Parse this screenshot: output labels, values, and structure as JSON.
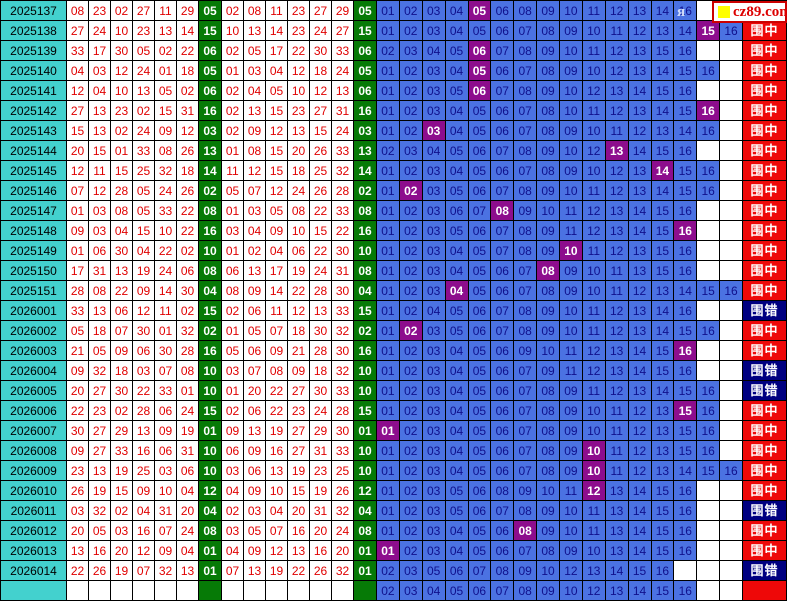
{
  "logo": {
    "site": "cz89.com",
    "watermark_fragment": "я",
    "square_color": "#FFFF00"
  },
  "colors": {
    "period_bg": "#43D1CE",
    "drawn_text": "#E00000",
    "blue_ball_bg": "#067A06",
    "pick_bg": "#4B72E2",
    "pick_text": "#10108C",
    "hit_bg": "#8D0D8D",
    "status_hit_bg": "#EE0808",
    "status_miss_bg": "#000080",
    "border": "#000000"
  },
  "chart_data": {
    "type": "table",
    "grid_columns": 16,
    "status_labels": {
      "hit": "围中",
      "miss": "围错",
      "pending": ""
    },
    "rows": [
      {
        "period": "2025137",
        "drawn": [
          "08",
          "23",
          "02",
          "27",
          "11",
          "29"
        ],
        "blue": "05",
        "sorted": [
          "02",
          "08",
          "11",
          "23",
          "27",
          "29"
        ],
        "picks": [
          "01",
          "02",
          "03",
          "04",
          "05",
          "06",
          "08",
          "09",
          "10",
          "11",
          "12",
          "13",
          "14",
          "16"
        ],
        "status": "hit"
      },
      {
        "period": "2025138",
        "drawn": [
          "27",
          "24",
          "10",
          "23",
          "13",
          "14"
        ],
        "blue": "15",
        "sorted": [
          "10",
          "13",
          "14",
          "23",
          "24",
          "27"
        ],
        "picks": [
          "01",
          "02",
          "03",
          "04",
          "05",
          "06",
          "07",
          "08",
          "09",
          "10",
          "11",
          "12",
          "13",
          "14",
          "15",
          "16"
        ],
        "status": "hit"
      },
      {
        "period": "2025139",
        "drawn": [
          "33",
          "17",
          "30",
          "05",
          "02",
          "22"
        ],
        "blue": "06",
        "sorted": [
          "02",
          "05",
          "17",
          "22",
          "30",
          "33"
        ],
        "picks": [
          "02",
          "03",
          "04",
          "05",
          "06",
          "07",
          "08",
          "09",
          "10",
          "11",
          "12",
          "13",
          "15",
          "16"
        ],
        "status": "hit"
      },
      {
        "period": "2025140",
        "drawn": [
          "04",
          "03",
          "12",
          "24",
          "01",
          "18"
        ],
        "blue": "05",
        "sorted": [
          "01",
          "03",
          "04",
          "12",
          "18",
          "24"
        ],
        "picks": [
          "01",
          "02",
          "03",
          "04",
          "05",
          "06",
          "07",
          "08",
          "09",
          "10",
          "12",
          "13",
          "14",
          "15",
          "16"
        ],
        "status": "hit"
      },
      {
        "period": "2025141",
        "drawn": [
          "12",
          "04",
          "10",
          "13",
          "05",
          "02"
        ],
        "blue": "06",
        "sorted": [
          "02",
          "04",
          "05",
          "10",
          "12",
          "13"
        ],
        "picks": [
          "01",
          "02",
          "03",
          "05",
          "06",
          "07",
          "08",
          "09",
          "10",
          "12",
          "13",
          "14",
          "15",
          "16"
        ],
        "status": "hit"
      },
      {
        "period": "2025142",
        "drawn": [
          "27",
          "13",
          "23",
          "02",
          "15",
          "31"
        ],
        "blue": "16",
        "sorted": [
          "02",
          "13",
          "15",
          "23",
          "27",
          "31"
        ],
        "picks": [
          "01",
          "02",
          "03",
          "04",
          "05",
          "06",
          "07",
          "08",
          "10",
          "11",
          "12",
          "13",
          "14",
          "15",
          "16"
        ],
        "status": "hit"
      },
      {
        "period": "2025143",
        "drawn": [
          "15",
          "13",
          "02",
          "24",
          "09",
          "12"
        ],
        "blue": "03",
        "sorted": [
          "02",
          "09",
          "12",
          "13",
          "15",
          "24"
        ],
        "picks": [
          "01",
          "02",
          "03",
          "04",
          "05",
          "06",
          "07",
          "08",
          "09",
          "10",
          "11",
          "12",
          "13",
          "14",
          "16"
        ],
        "status": "hit"
      },
      {
        "period": "2025144",
        "drawn": [
          "20",
          "15",
          "01",
          "33",
          "08",
          "26"
        ],
        "blue": "13",
        "sorted": [
          "01",
          "08",
          "15",
          "20",
          "26",
          "33"
        ],
        "picks": [
          "02",
          "03",
          "04",
          "05",
          "06",
          "07",
          "08",
          "09",
          "10",
          "12",
          "13",
          "14",
          "15",
          "16"
        ],
        "status": "hit"
      },
      {
        "period": "2025145",
        "drawn": [
          "12",
          "11",
          "15",
          "25",
          "32",
          "18"
        ],
        "blue": "14",
        "sorted": [
          "11",
          "12",
          "15",
          "18",
          "25",
          "32"
        ],
        "picks": [
          "01",
          "02",
          "03",
          "04",
          "05",
          "06",
          "07",
          "08",
          "09",
          "10",
          "12",
          "13",
          "14",
          "15",
          "16"
        ],
        "status": "hit"
      },
      {
        "period": "2025146",
        "drawn": [
          "07",
          "12",
          "28",
          "05",
          "24",
          "26"
        ],
        "blue": "02",
        "sorted": [
          "05",
          "07",
          "12",
          "24",
          "26",
          "28"
        ],
        "picks": [
          "01",
          "02",
          "03",
          "05",
          "06",
          "07",
          "08",
          "09",
          "10",
          "11",
          "12",
          "13",
          "14",
          "15",
          "16"
        ],
        "status": "hit"
      },
      {
        "period": "2025147",
        "drawn": [
          "01",
          "03",
          "08",
          "05",
          "33",
          "22"
        ],
        "blue": "08",
        "sorted": [
          "01",
          "03",
          "05",
          "08",
          "22",
          "33"
        ],
        "picks": [
          "01",
          "02",
          "03",
          "06",
          "07",
          "08",
          "09",
          "10",
          "11",
          "12",
          "13",
          "14",
          "15",
          "16"
        ],
        "status": "hit"
      },
      {
        "period": "2025148",
        "drawn": [
          "09",
          "03",
          "04",
          "15",
          "10",
          "22"
        ],
        "blue": "16",
        "sorted": [
          "03",
          "04",
          "09",
          "10",
          "15",
          "22"
        ],
        "picks": [
          "01",
          "02",
          "03",
          "05",
          "06",
          "07",
          "08",
          "09",
          "11",
          "12",
          "13",
          "14",
          "15",
          "16"
        ],
        "status": "hit"
      },
      {
        "period": "2025149",
        "drawn": [
          "01",
          "06",
          "30",
          "04",
          "22",
          "02"
        ],
        "blue": "10",
        "sorted": [
          "01",
          "02",
          "04",
          "06",
          "22",
          "30"
        ],
        "picks": [
          "01",
          "02",
          "03",
          "04",
          "05",
          "07",
          "08",
          "09",
          "10",
          "11",
          "12",
          "13",
          "15",
          "16"
        ],
        "status": "hit"
      },
      {
        "period": "2025150",
        "drawn": [
          "17",
          "31",
          "13",
          "19",
          "24",
          "06"
        ],
        "blue": "08",
        "sorted": [
          "06",
          "13",
          "17",
          "19",
          "24",
          "31"
        ],
        "picks": [
          "01",
          "02",
          "03",
          "04",
          "05",
          "06",
          "07",
          "08",
          "09",
          "10",
          "11",
          "13",
          "15",
          "16"
        ],
        "status": "hit"
      },
      {
        "period": "2025151",
        "drawn": [
          "28",
          "08",
          "22",
          "09",
          "14",
          "30"
        ],
        "blue": "04",
        "sorted": [
          "08",
          "09",
          "14",
          "22",
          "28",
          "30"
        ],
        "picks": [
          "01",
          "02",
          "03",
          "04",
          "05",
          "06",
          "07",
          "08",
          "09",
          "10",
          "11",
          "12",
          "13",
          "14",
          "15",
          "16"
        ],
        "status": "hit"
      },
      {
        "period": "2026001",
        "drawn": [
          "33",
          "13",
          "06",
          "12",
          "11",
          "02"
        ],
        "blue": "15",
        "sorted": [
          "02",
          "06",
          "11",
          "12",
          "13",
          "33"
        ],
        "picks": [
          "01",
          "02",
          "04",
          "05",
          "06",
          "07",
          "08",
          "09",
          "10",
          "11",
          "12",
          "13",
          "14",
          "16"
        ],
        "status": "miss"
      },
      {
        "period": "2026002",
        "drawn": [
          "05",
          "18",
          "07",
          "30",
          "01",
          "32"
        ],
        "blue": "02",
        "sorted": [
          "01",
          "05",
          "07",
          "18",
          "30",
          "32"
        ],
        "picks": [
          "01",
          "02",
          "03",
          "05",
          "06",
          "07",
          "08",
          "09",
          "10",
          "11",
          "12",
          "13",
          "14",
          "15",
          "16"
        ],
        "status": "hit"
      },
      {
        "period": "2026003",
        "drawn": [
          "21",
          "05",
          "09",
          "06",
          "30",
          "28"
        ],
        "blue": "16",
        "sorted": [
          "05",
          "06",
          "09",
          "21",
          "28",
          "30"
        ],
        "picks": [
          "01",
          "02",
          "03",
          "04",
          "05",
          "06",
          "09",
          "10",
          "11",
          "12",
          "13",
          "14",
          "15",
          "16"
        ],
        "status": "hit"
      },
      {
        "period": "2026004",
        "drawn": [
          "09",
          "32",
          "18",
          "03",
          "07",
          "08"
        ],
        "blue": "10",
        "sorted": [
          "03",
          "07",
          "08",
          "09",
          "18",
          "32"
        ],
        "picks": [
          "01",
          "02",
          "03",
          "04",
          "05",
          "06",
          "07",
          "09",
          "11",
          "12",
          "13",
          "14",
          "15",
          "16"
        ],
        "status": "miss"
      },
      {
        "period": "2026005",
        "drawn": [
          "20",
          "27",
          "30",
          "22",
          "33",
          "01"
        ],
        "blue": "10",
        "sorted": [
          "01",
          "20",
          "22",
          "27",
          "30",
          "33"
        ],
        "picks": [
          "01",
          "02",
          "03",
          "04",
          "05",
          "06",
          "07",
          "08",
          "09",
          "11",
          "12",
          "13",
          "14",
          "15",
          "16"
        ],
        "status": "miss"
      },
      {
        "period": "2026006",
        "drawn": [
          "22",
          "23",
          "02",
          "28",
          "06",
          "24"
        ],
        "blue": "15",
        "sorted": [
          "02",
          "06",
          "22",
          "23",
          "24",
          "28"
        ],
        "picks": [
          "01",
          "02",
          "03",
          "04",
          "05",
          "06",
          "07",
          "08",
          "09",
          "10",
          "11",
          "12",
          "13",
          "15",
          "16"
        ],
        "status": "hit"
      },
      {
        "period": "2026007",
        "drawn": [
          "30",
          "27",
          "29",
          "13",
          "09",
          "19"
        ],
        "blue": "01",
        "sorted": [
          "09",
          "13",
          "19",
          "27",
          "29",
          "30"
        ],
        "picks": [
          "01",
          "02",
          "03",
          "04",
          "05",
          "06",
          "07",
          "08",
          "09",
          "10",
          "11",
          "12",
          "13",
          "15",
          "16"
        ],
        "status": "hit"
      },
      {
        "period": "2026008",
        "drawn": [
          "09",
          "27",
          "33",
          "16",
          "06",
          "31"
        ],
        "blue": "10",
        "sorted": [
          "06",
          "09",
          "16",
          "27",
          "31",
          "33"
        ],
        "picks": [
          "01",
          "02",
          "03",
          "04",
          "05",
          "06",
          "07",
          "08",
          "09",
          "10",
          "11",
          "12",
          "13",
          "15",
          "16"
        ],
        "status": "hit"
      },
      {
        "period": "2026009",
        "drawn": [
          "23",
          "13",
          "19",
          "25",
          "03",
          "06"
        ],
        "blue": "10",
        "sorted": [
          "03",
          "06",
          "13",
          "19",
          "23",
          "25"
        ],
        "picks": [
          "01",
          "02",
          "03",
          "04",
          "05",
          "06",
          "07",
          "08",
          "09",
          "10",
          "11",
          "12",
          "13",
          "14",
          "15",
          "16"
        ],
        "status": "hit"
      },
      {
        "period": "2026010",
        "drawn": [
          "26",
          "19",
          "15",
          "09",
          "10",
          "04"
        ],
        "blue": "12",
        "sorted": [
          "04",
          "09",
          "10",
          "15",
          "19",
          "26"
        ],
        "picks": [
          "01",
          "02",
          "03",
          "05",
          "06",
          "08",
          "09",
          "10",
          "11",
          "12",
          "13",
          "14",
          "15",
          "16"
        ],
        "status": "hit"
      },
      {
        "period": "2026011",
        "drawn": [
          "03",
          "32",
          "02",
          "04",
          "31",
          "20"
        ],
        "blue": "04",
        "sorted": [
          "02",
          "03",
          "04",
          "20",
          "31",
          "32"
        ],
        "picks": [
          "01",
          "02",
          "03",
          "05",
          "06",
          "07",
          "08",
          "09",
          "10",
          "11",
          "13",
          "14",
          "15",
          "16"
        ],
        "status": "miss"
      },
      {
        "period": "2026012",
        "drawn": [
          "20",
          "05",
          "03",
          "16",
          "07",
          "24"
        ],
        "blue": "08",
        "sorted": [
          "03",
          "05",
          "07",
          "16",
          "20",
          "24"
        ],
        "picks": [
          "01",
          "02",
          "03",
          "04",
          "05",
          "06",
          "08",
          "09",
          "10",
          "11",
          "13",
          "14",
          "15",
          "16"
        ],
        "status": "hit"
      },
      {
        "period": "2026013",
        "drawn": [
          "13",
          "16",
          "20",
          "12",
          "09",
          "04"
        ],
        "blue": "01",
        "sorted": [
          "04",
          "09",
          "12",
          "13",
          "16",
          "20"
        ],
        "picks": [
          "01",
          "02",
          "03",
          "04",
          "05",
          "06",
          "07",
          "08",
          "09",
          "10",
          "13",
          "14",
          "15",
          "16"
        ],
        "status": "hit"
      },
      {
        "period": "2026014",
        "drawn": [
          "22",
          "26",
          "19",
          "07",
          "32",
          "13"
        ],
        "blue": "01",
        "sorted": [
          "07",
          "13",
          "19",
          "22",
          "26",
          "32"
        ],
        "picks": [
          "02",
          "03",
          "05",
          "06",
          "07",
          "08",
          "09",
          "10",
          "12",
          "13",
          "14",
          "15",
          "16"
        ],
        "status": "miss"
      },
      {
        "period": "",
        "drawn": [
          "",
          "",
          "",
          "",
          "",
          ""
        ],
        "blue": "",
        "sorted": [
          "",
          "",
          "",
          "",
          "",
          ""
        ],
        "picks": [
          "02",
          "03",
          "04",
          "05",
          "06",
          "07",
          "08",
          "09",
          "10",
          "12",
          "13",
          "14",
          "15",
          "16"
        ],
        "status": "pending"
      }
    ]
  }
}
